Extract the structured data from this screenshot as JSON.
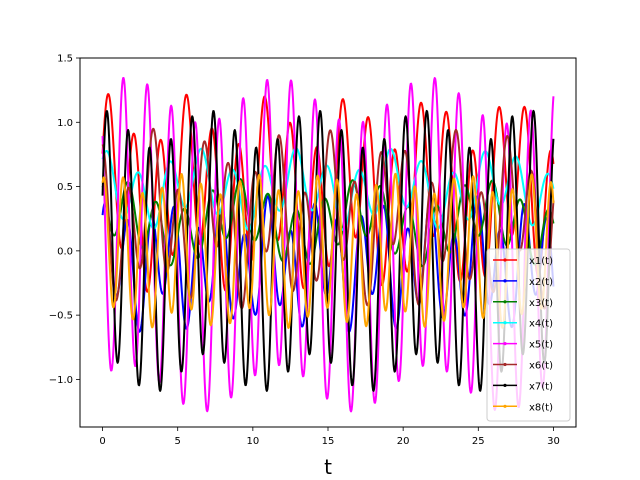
{
  "chart_data": {
    "type": "line",
    "title": "",
    "xlabel": "t",
    "ylabel": "",
    "xlim": [
      -1.5,
      31.5
    ],
    "ylim": [
      -1.37,
      1.5
    ],
    "xticks": [
      0,
      5,
      10,
      15,
      20,
      25,
      30
    ],
    "xtick_labels": [
      "0",
      "5",
      "10",
      "15",
      "20",
      "25",
      "30"
    ],
    "yticks": [
      -1.0,
      -0.5,
      0.0,
      0.5,
      1.0,
      1.5
    ],
    "ytick_labels": [
      "−1.0",
      "−0.5",
      "0.0",
      "0.5",
      "1.0",
      "1.5"
    ],
    "grid": false,
    "legend_position": "lower-right",
    "series": [
      {
        "name": "x1(t)",
        "color": "#ff0000",
        "offset": 0.45,
        "amps": [
          0.55,
          0.22
        ],
        "freqs": [
          1.27,
          0.41
        ],
        "phases": [
          0.2,
          1.1
        ]
      },
      {
        "name": "x2(t)",
        "color": "#0000ff",
        "offset": -0.1,
        "amps": [
          0.38,
          0.15
        ],
        "freqs": [
          1.42,
          0.63
        ],
        "phases": [
          1.0,
          0.4
        ]
      },
      {
        "name": "x3(t)",
        "color": "#008000",
        "offset": 0.22,
        "amps": [
          0.22,
          0.12
        ],
        "freqs": [
          1.18,
          0.27
        ],
        "phases": [
          2.1,
          0.9
        ]
      },
      {
        "name": "x4(t)",
        "color": "#00ffff",
        "offset": 0.48,
        "amps": [
          0.22,
          0.1
        ],
        "freqs": [
          1.05,
          0.33
        ],
        "phases": [
          0.7,
          2.0
        ]
      },
      {
        "name": "x5(t)",
        "color": "#ff00ff",
        "offset": 0.05,
        "amps": [
          1.12,
          0.18
        ],
        "freqs": [
          1.38,
          0.22
        ],
        "phases": [
          2.4,
          0.5
        ]
      },
      {
        "name": "x6(t)",
        "color": "#a52a2a",
        "offset": 0.25,
        "amps": [
          0.45,
          0.25
        ],
        "freqs": [
          1.31,
          0.55
        ],
        "phases": [
          1.5,
          2.6
        ]
      },
      {
        "name": "x7(t)",
        "color": "#000000",
        "offset": 0.0,
        "amps": [
          0.95,
          0.15
        ],
        "freqs": [
          1.55,
          0.31
        ],
        "phases": [
          0.3,
          1.7
        ]
      },
      {
        "name": "x8(t)",
        "color": "#ffa500",
        "offset": 0.0,
        "amps": [
          0.52,
          0.08
        ],
        "freqs": [
          1.7,
          0.47
        ],
        "phases": [
          1.2,
          0.6
        ]
      }
    ]
  }
}
